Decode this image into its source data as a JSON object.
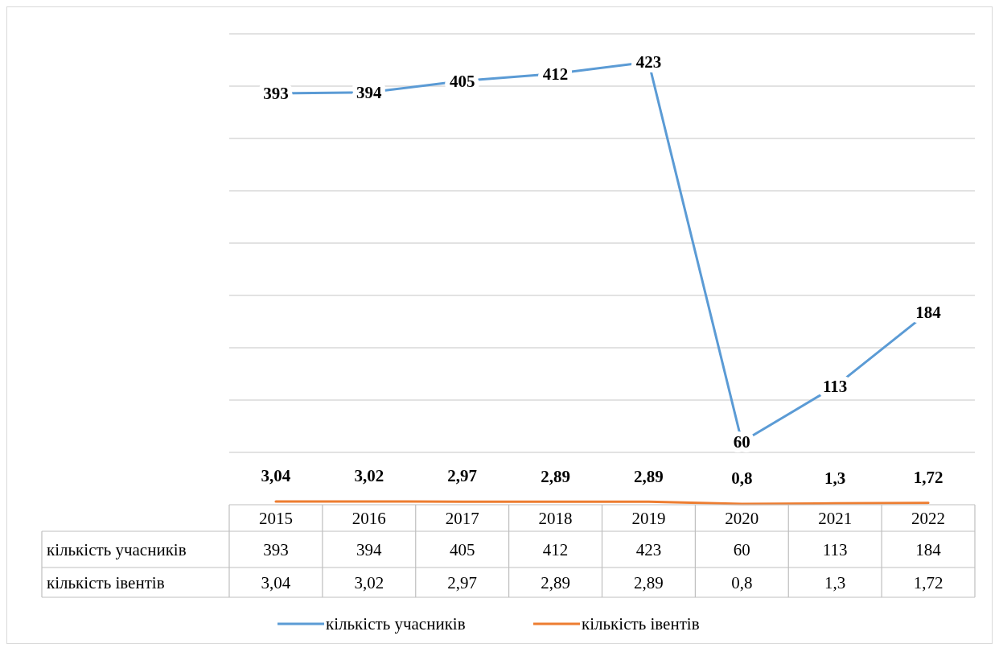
{
  "chart_data": {
    "type": "line",
    "categories": [
      "2015",
      "2016",
      "2017",
      "2018",
      "2019",
      "2020",
      "2021",
      "2022"
    ],
    "series": [
      {
        "name": "кількість учасників",
        "color": "#5b9bd5",
        "values": [
          393,
          394,
          405,
          412,
          423,
          60,
          113,
          184
        ],
        "value_labels": [
          "393",
          "394",
          "405",
          "412",
          "423",
          "60",
          "113",
          "184"
        ]
      },
      {
        "name": "кількість івентів",
        "color": "#ed7d31",
        "values": [
          3.04,
          3.02,
          2.97,
          2.89,
          2.89,
          0.8,
          1.3,
          1.72
        ],
        "value_labels": [
          "3,04",
          "3,02",
          "2,97",
          "2,89",
          "2,89",
          "0,8",
          "1,3",
          "1,72"
        ]
      }
    ],
    "ylim": [
      0,
      450
    ],
    "yticks": [
      {
        "value": 50,
        "label": null
      },
      {
        "value": 100,
        "label": null
      },
      {
        "value": 150,
        "label": null
      },
      {
        "value": 200,
        "label": null
      },
      {
        "value": 250,
        "label": null
      },
      {
        "value": 300,
        "label": null
      },
      {
        "value": 350,
        "label": null
      },
      {
        "value": 400,
        "label": null
      },
      {
        "value": 450,
        "label": null
      }
    ],
    "grid": "y",
    "tick_labels": "x",
    "legend": "bottom",
    "marker": "none",
    "line_style": "solid"
  }
}
